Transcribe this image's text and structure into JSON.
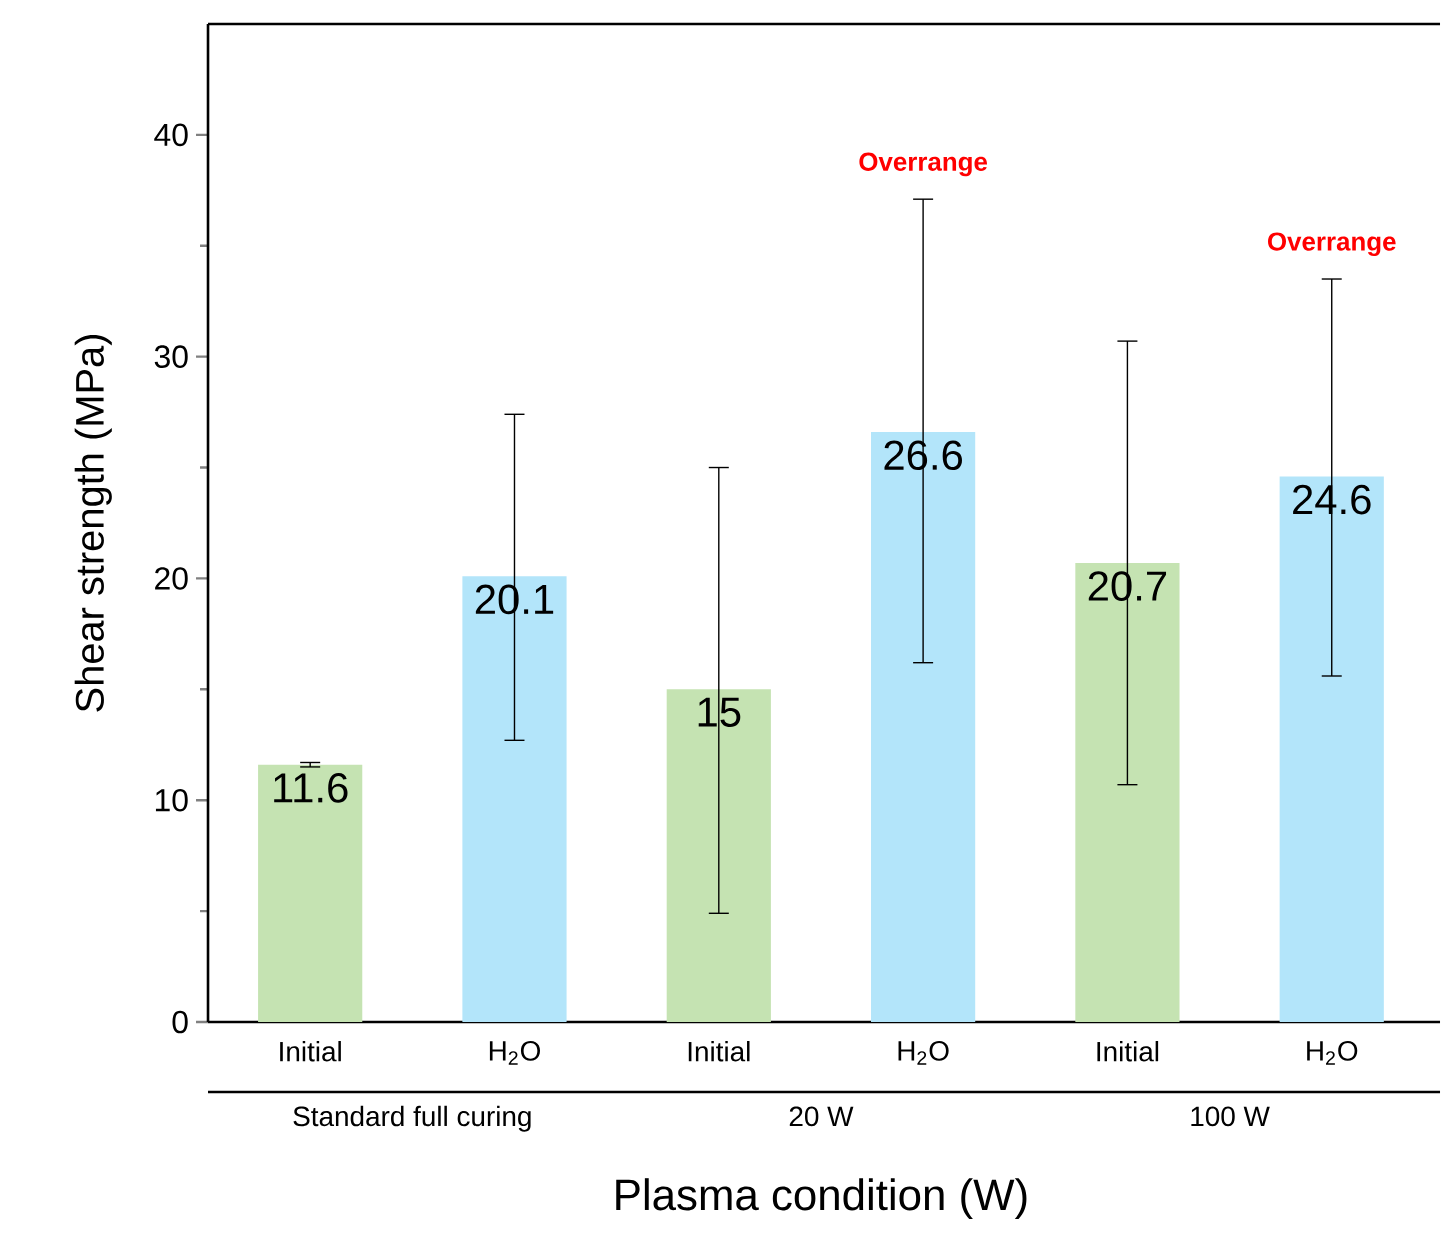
{
  "chart_data": {
    "type": "bar",
    "xlabel": "Plasma condition (W)",
    "ylabel": "Shear strength (MPa)",
    "categories": [
      "Initial",
      "H$_{2}$O",
      "Initial",
      "H$_{2}$O",
      "Initial",
      "H$_{2}$O"
    ],
    "values": [
      11.6,
      20.1,
      15,
      26.6,
      20.7,
      24.6
    ],
    "colors": [
      "#c5e3b2",
      "#b3e5fa",
      "#c5e3b2",
      "#b3e5fa",
      "#c5e3b2",
      "#b3e5fa"
    ],
    "errors": [
      [
        11.5,
        11.7
      ],
      [
        12.7,
        27.4
      ],
      [
        4.9,
        25.0
      ],
      [
        16.2,
        37.1
      ],
      [
        10.7,
        30.7
      ],
      [
        15.6,
        33.5
      ]
    ],
    "ylim": [
      0,
      45
    ],
    "yticks": [
      0,
      10,
      20,
      30,
      40
    ],
    "data_labels": true,
    "annotations": [
      "Standard full curing",
      "20 W",
      "100 W",
      "Overrange",
      "Overrange"
    ]
  }
}
